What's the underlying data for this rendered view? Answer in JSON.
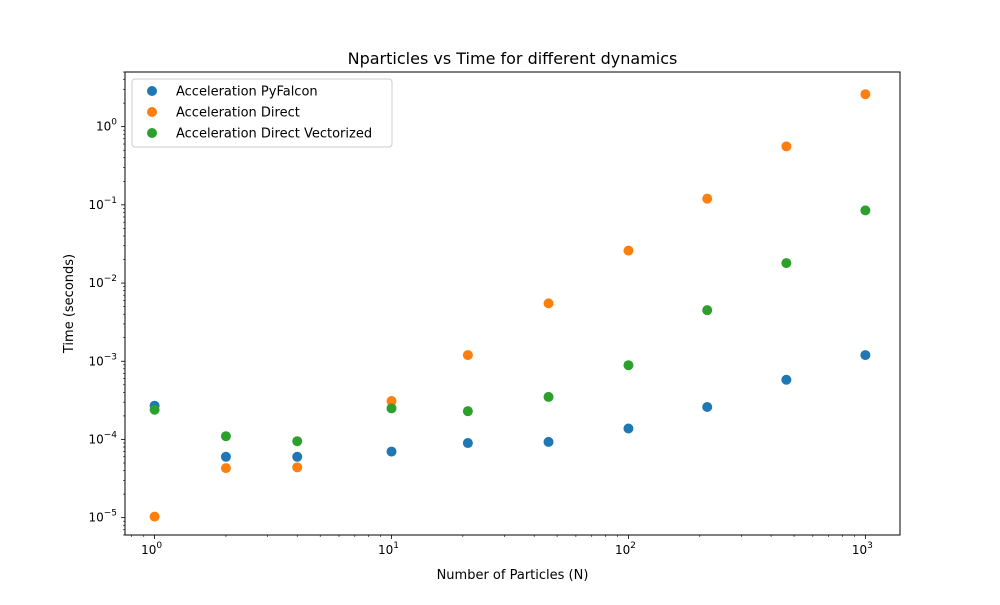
{
  "chart_data": {
    "type": "scatter",
    "title": "Nparticles vs Time for different dynamics",
    "xlabel": "Number of Particles (N)",
    "ylabel": "Time (seconds)",
    "xscale": "log",
    "yscale": "log",
    "xlim": [
      0.75,
      1400
    ],
    "ylim": [
      6e-06,
      5
    ],
    "grid": false,
    "legend_position": "top-left",
    "x_ticks": [
      {
        "base": "10",
        "exp": "0",
        "value": 1
      },
      {
        "base": "10",
        "exp": "1",
        "value": 10
      },
      {
        "base": "10",
        "exp": "2",
        "value": 100
      },
      {
        "base": "10",
        "exp": "3",
        "value": 1000
      }
    ],
    "y_ticks": [
      {
        "base": "10",
        "exp": "−5",
        "value": 1e-05
      },
      {
        "base": "10",
        "exp": "−4",
        "value": 0.0001
      },
      {
        "base": "10",
        "exp": "−3",
        "value": 0.001
      },
      {
        "base": "10",
        "exp": "−2",
        "value": 0.01
      },
      {
        "base": "10",
        "exp": "−1",
        "value": 0.1
      },
      {
        "base": "10",
        "exp": "0",
        "value": 1
      }
    ],
    "series": [
      {
        "name": "Acceleration PyFalcon",
        "color": "#1f77b4",
        "x": [
          1,
          2,
          4,
          10,
          21,
          46,
          100,
          215,
          464,
          1000
        ],
        "y": [
          0.00027,
          6e-05,
          6e-05,
          7e-05,
          9e-05,
          9.3e-05,
          0.000138,
          0.00026,
          0.00058,
          0.0012
        ]
      },
      {
        "name": "Acceleration Direct",
        "color": "#ff7f0e",
        "x": [
          1,
          2,
          4,
          10,
          21,
          46,
          100,
          215,
          464,
          1000
        ],
        "y": [
          1.03e-05,
          4.3e-05,
          4.4e-05,
          0.00031,
          0.0012,
          0.0055,
          0.026,
          0.12,
          0.56,
          2.6
        ]
      },
      {
        "name": "Acceleration Direct Vectorized",
        "color": "#2ca02c",
        "x": [
          1,
          2,
          4,
          10,
          21,
          46,
          100,
          215,
          464,
          1000
        ],
        "y": [
          0.00024,
          0.00011,
          9.5e-05,
          0.00025,
          0.00023,
          0.00035,
          0.00089,
          0.0045,
          0.018,
          0.085
        ]
      }
    ]
  }
}
